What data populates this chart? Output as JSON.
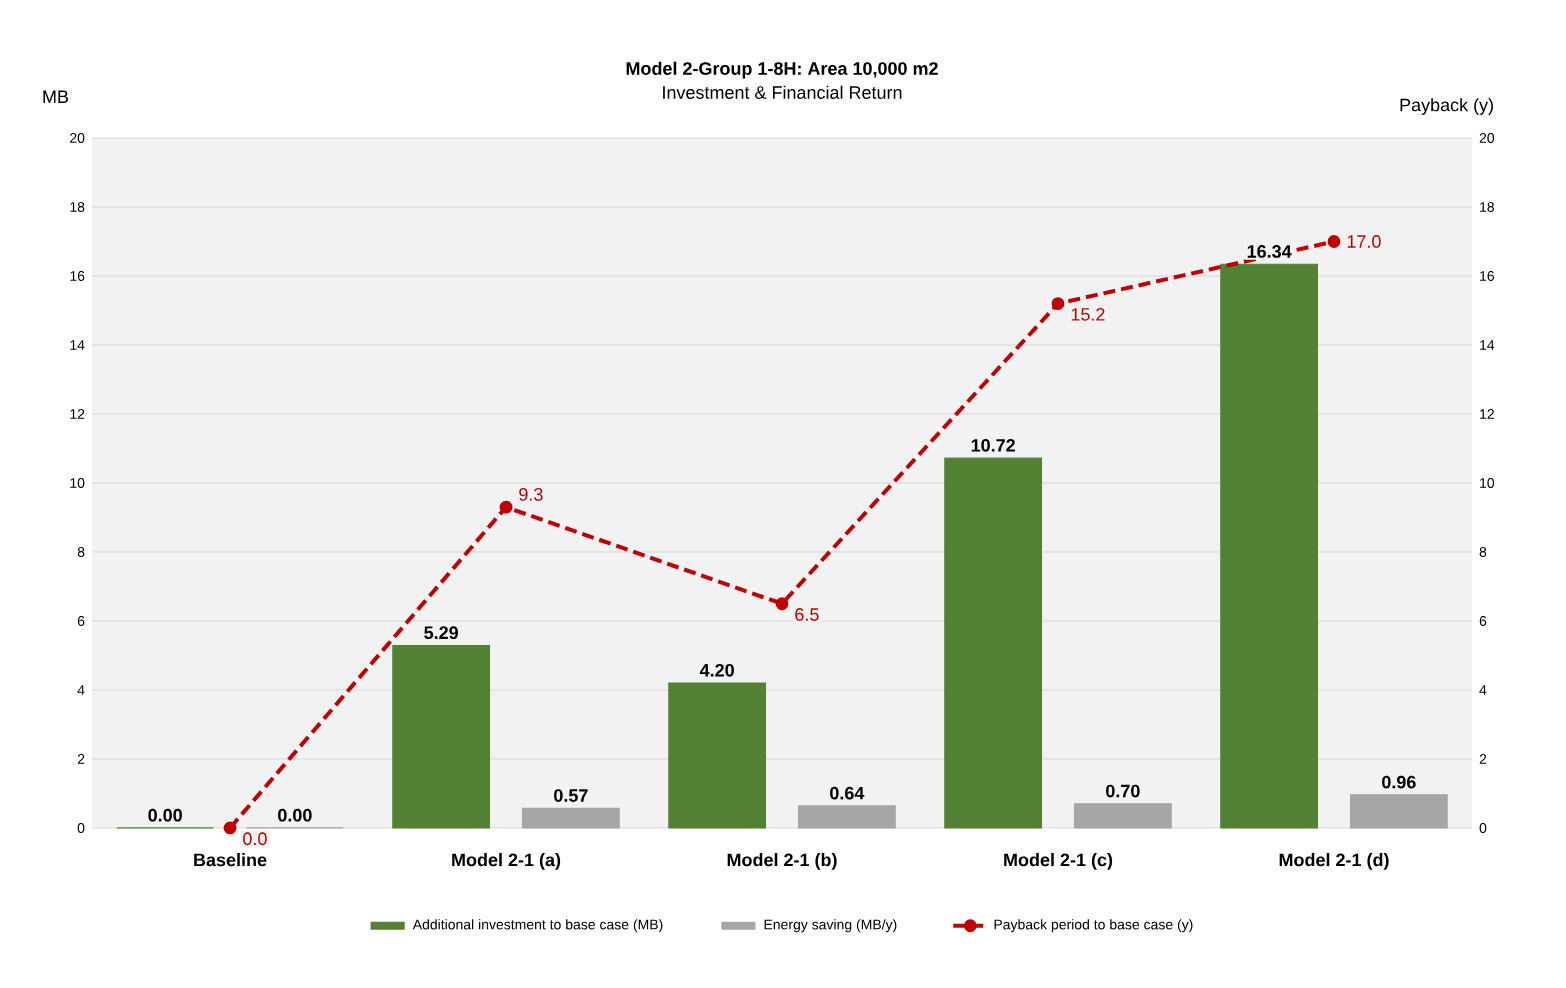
{
  "chart_data": {
    "type": "bar",
    "title": "Model 2-Group 1-8H: Area 10,000 m2",
    "subtitle": "Investment & Financial Return",
    "ylabel": "MB",
    "y2label": "Payback (y)",
    "categories": [
      "Baseline",
      "Model 2-1 (a)",
      "Model 2-1 (b)",
      "Model 2-1 (c)",
      "Model 2-1 (d)"
    ],
    "series": [
      {
        "name": "Additional investment to base case (MB)",
        "color": "#548235",
        "values": [
          0,
          5.29,
          4.2,
          10.72,
          16.34
        ],
        "value_labels": [
          "0.00",
          "5.29",
          "4.20",
          "10.72",
          "16.34"
        ]
      },
      {
        "name": "Energy saving (MB/y)",
        "color": "#a6a6a6",
        "values": [
          0,
          0.57,
          0.64,
          0.7,
          0.96
        ],
        "value_labels": [
          "0.00",
          "0.57",
          "0.64",
          "0.70",
          "0.96"
        ]
      },
      {
        "name": "Payback period to base case (y)",
        "type": "line",
        "axis": "y2",
        "color": "#c00000",
        "line_style": "dashed",
        "marker": "circle",
        "values": [
          0,
          9.3,
          6.5,
          15.2,
          17.0
        ],
        "value_labels": [
          "0.0",
          "9.3",
          "6.5",
          "15.2",
          "17.0"
        ]
      }
    ],
    "ylim": [
      0,
      20
    ],
    "yticks": [
      0,
      2,
      4,
      6,
      8,
      10,
      12,
      14,
      16,
      18,
      20
    ],
    "y2lim": [
      0,
      20
    ],
    "y2ticks": [
      0,
      2,
      4,
      6,
      8,
      10,
      12,
      14,
      16,
      18,
      20
    ],
    "grid": "y",
    "legend": "bottom"
  }
}
